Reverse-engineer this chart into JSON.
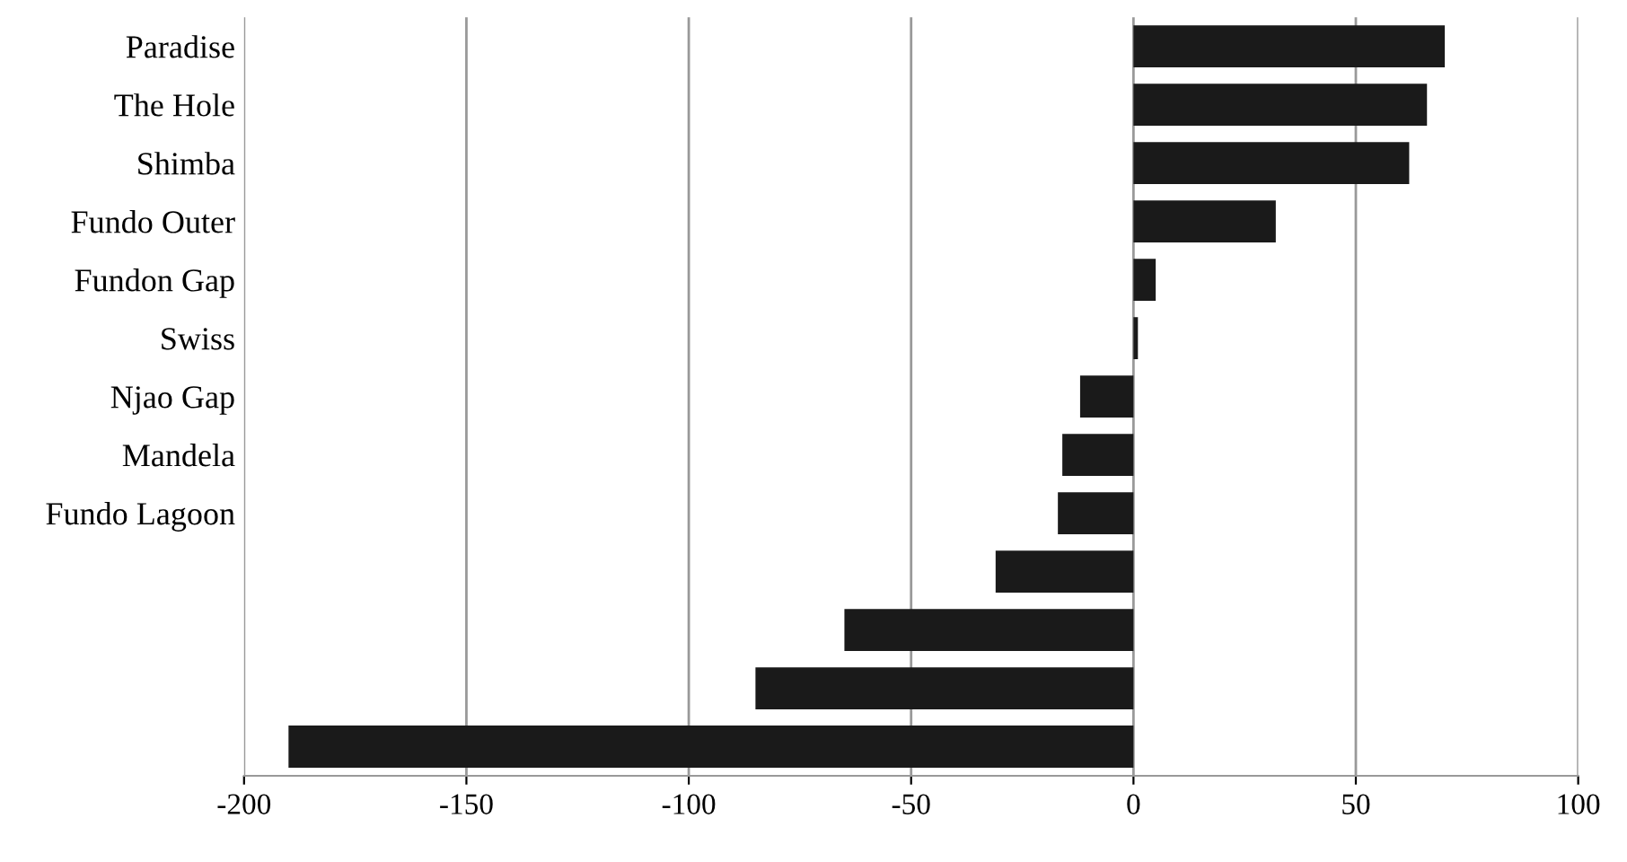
{
  "chart_data": {
    "type": "bar",
    "orientation": "horizontal",
    "categories": [
      "Paradise",
      "The Hole",
      "Shimba",
      "Fundo Outer",
      "Fundon Gap",
      "Swiss",
      "Njao Gap",
      "Mandela",
      "Fundo Lagoon",
      null,
      null,
      null,
      null
    ],
    "values": [
      70,
      66,
      62,
      32,
      5,
      1,
      -12,
      -16,
      -17,
      -31,
      -65,
      -85,
      -190
    ],
    "color": "#1a1a1a",
    "xlim": [
      -200,
      100
    ],
    "xticks": [
      -200,
      -150,
      -100,
      -50,
      0,
      50,
      100
    ],
    "grid": "x"
  }
}
